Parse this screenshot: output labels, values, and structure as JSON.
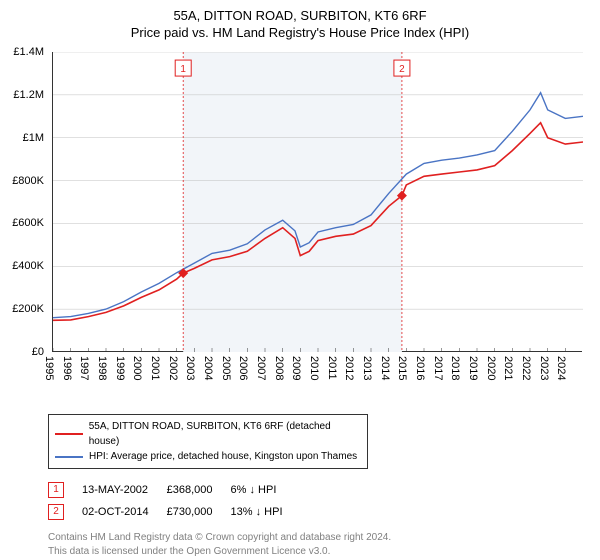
{
  "title_main": "55A, DITTON ROAD, SURBITON, KT6 6RF",
  "title_sub": "Price paid vs. HM Land Registry's House Price Index (HPI)",
  "chart": {
    "type": "line",
    "background_color": "#ffffff",
    "shaded_color": "#f2f5f9",
    "grid_color": "#c0c0c0",
    "axis_color": "#333333",
    "x_range": [
      1995,
      2025
    ],
    "y_range": [
      0,
      1400000
    ],
    "y_ticks": [
      0,
      200000,
      400000,
      600000,
      800000,
      1000000,
      1200000,
      1400000
    ],
    "y_tick_labels": [
      "£0",
      "£200K",
      "£400K",
      "£600K",
      "£800K",
      "£1M",
      "£1.2M",
      "£1.4M"
    ],
    "x_ticks": [
      1995,
      1996,
      1997,
      1998,
      1999,
      2000,
      2001,
      2002,
      2003,
      2004,
      2005,
      2006,
      2007,
      2008,
      2009,
      2010,
      2011,
      2012,
      2013,
      2014,
      2015,
      2016,
      2017,
      2018,
      2019,
      2020,
      2021,
      2022,
      2023,
      2024
    ],
    "shaded_start": 2002.37,
    "shaded_end": 2014.75,
    "series": [
      {
        "name": "55A, DITTON ROAD, SURBITON, KT6 6RF (detached house)",
        "color": "#e02020",
        "line_width": 1.6,
        "data": [
          [
            1995,
            148000
          ],
          [
            1996,
            150000
          ],
          [
            1997,
            165000
          ],
          [
            1998,
            185000
          ],
          [
            1999,
            215000
          ],
          [
            2000,
            255000
          ],
          [
            2001,
            290000
          ],
          [
            2002,
            340000
          ],
          [
            2002.37,
            368000
          ],
          [
            2003,
            390000
          ],
          [
            2004,
            430000
          ],
          [
            2005,
            445000
          ],
          [
            2006,
            470000
          ],
          [
            2007,
            530000
          ],
          [
            2008,
            580000
          ],
          [
            2008.7,
            530000
          ],
          [
            2009,
            450000
          ],
          [
            2009.5,
            470000
          ],
          [
            2010,
            520000
          ],
          [
            2011,
            540000
          ],
          [
            2012,
            550000
          ],
          [
            2013,
            590000
          ],
          [
            2014,
            680000
          ],
          [
            2014.75,
            730000
          ],
          [
            2015,
            780000
          ],
          [
            2016,
            820000
          ],
          [
            2017,
            830000
          ],
          [
            2018,
            840000
          ],
          [
            2019,
            850000
          ],
          [
            2020,
            870000
          ],
          [
            2021,
            940000
          ],
          [
            2022,
            1020000
          ],
          [
            2022.6,
            1070000
          ],
          [
            2023,
            1000000
          ],
          [
            2024,
            970000
          ],
          [
            2025,
            980000
          ]
        ]
      },
      {
        "name": "HPI: Average price, detached house, Kingston upon Thames",
        "color": "#4a74c4",
        "line_width": 1.4,
        "data": [
          [
            1995,
            160000
          ],
          [
            1996,
            165000
          ],
          [
            1997,
            180000
          ],
          [
            1998,
            200000
          ],
          [
            1999,
            235000
          ],
          [
            2000,
            280000
          ],
          [
            2001,
            320000
          ],
          [
            2002,
            370000
          ],
          [
            2003,
            415000
          ],
          [
            2004,
            460000
          ],
          [
            2005,
            475000
          ],
          [
            2006,
            505000
          ],
          [
            2007,
            570000
          ],
          [
            2008,
            615000
          ],
          [
            2008.7,
            565000
          ],
          [
            2009,
            490000
          ],
          [
            2009.5,
            510000
          ],
          [
            2010,
            560000
          ],
          [
            2011,
            580000
          ],
          [
            2012,
            595000
          ],
          [
            2013,
            640000
          ],
          [
            2014,
            740000
          ],
          [
            2015,
            830000
          ],
          [
            2016,
            880000
          ],
          [
            2017,
            895000
          ],
          [
            2018,
            905000
          ],
          [
            2019,
            920000
          ],
          [
            2020,
            940000
          ],
          [
            2021,
            1030000
          ],
          [
            2022,
            1130000
          ],
          [
            2022.6,
            1210000
          ],
          [
            2023,
            1130000
          ],
          [
            2024,
            1090000
          ],
          [
            2025,
            1100000
          ]
        ]
      }
    ],
    "markers": [
      {
        "n": 1,
        "x": 2002.37,
        "y": 368000,
        "label_y": 1325000
      },
      {
        "n": 2,
        "x": 2014.75,
        "y": 730000,
        "label_y": 1325000
      }
    ],
    "marker_color": "#e02020"
  },
  "legend": {
    "line1_color": "#e02020",
    "line1_text": "55A, DITTON ROAD, SURBITON, KT6 6RF (detached house)",
    "line2_color": "#4a74c4",
    "line2_text": "HPI: Average price, detached house, Kingston upon Thames"
  },
  "sales": [
    {
      "n": "1",
      "date": "13-MAY-2002",
      "price": "£368,000",
      "diff": "6% ↓ HPI"
    },
    {
      "n": "2",
      "date": "02-OCT-2014",
      "price": "£730,000",
      "diff": "13% ↓ HPI"
    }
  ],
  "footer_line1": "Contains HM Land Registry data © Crown copyright and database right 2024.",
  "footer_line2": "This data is licensed under the Open Government Licence v3.0."
}
